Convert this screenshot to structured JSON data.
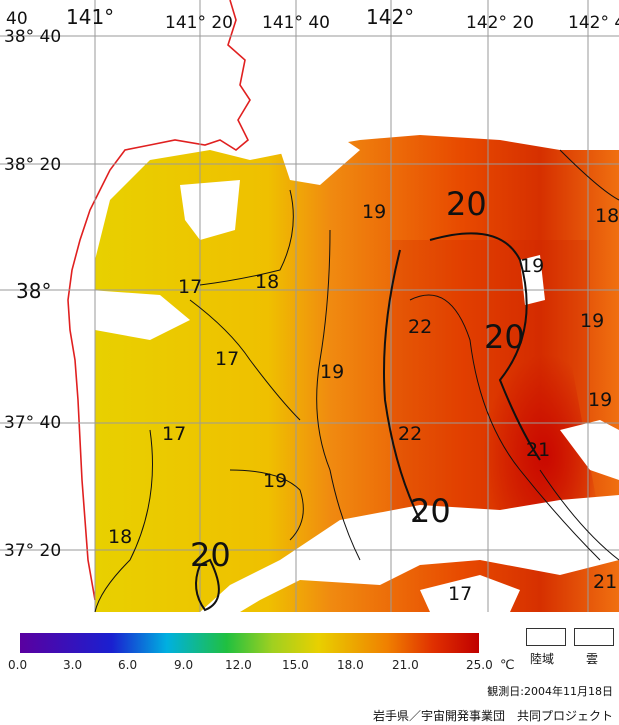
{
  "map": {
    "lon_labels": [
      "141°",
      "141° 20",
      "141° 40",
      "142°",
      "142° 20",
      "142° 4"
    ],
    "lat_labels": [
      "38° 40",
      "38° 20",
      "38°",
      "37° 40",
      "37° 20"
    ],
    "corner_label": "40",
    "contour_labels": [
      "17",
      "17",
      "17",
      "18",
      "18",
      "18",
      "19",
      "19",
      "19",
      "19",
      "19",
      "20",
      "20",
      "20",
      "20",
      "21",
      "21",
      "22",
      "22",
      "17",
      "19"
    ]
  },
  "colorbar": {
    "ticks": [
      "0.0",
      "3.0",
      "6.0",
      "9.0",
      "12.0",
      "15.0",
      "18.0",
      "21.0",
      "25.0"
    ],
    "unit": "℃",
    "colors": [
      "#5a00a0",
      "#1a20d0",
      "#1060ff",
      "#00b0e0",
      "#20c040",
      "#a0d020",
      "#e8d000",
      "#f08000",
      "#e03000",
      "#c00000"
    ]
  },
  "legend": {
    "land": "陸域",
    "cloud": "雲"
  },
  "footer": {
    "date": "観測日:2004年11月18日",
    "credit": "岩手県／宇宙開発事業団　共同プロジェクト"
  },
  "colors": {
    "coastline": "#e02020",
    "grid": "#9a9a9a",
    "contour": "#111111"
  }
}
